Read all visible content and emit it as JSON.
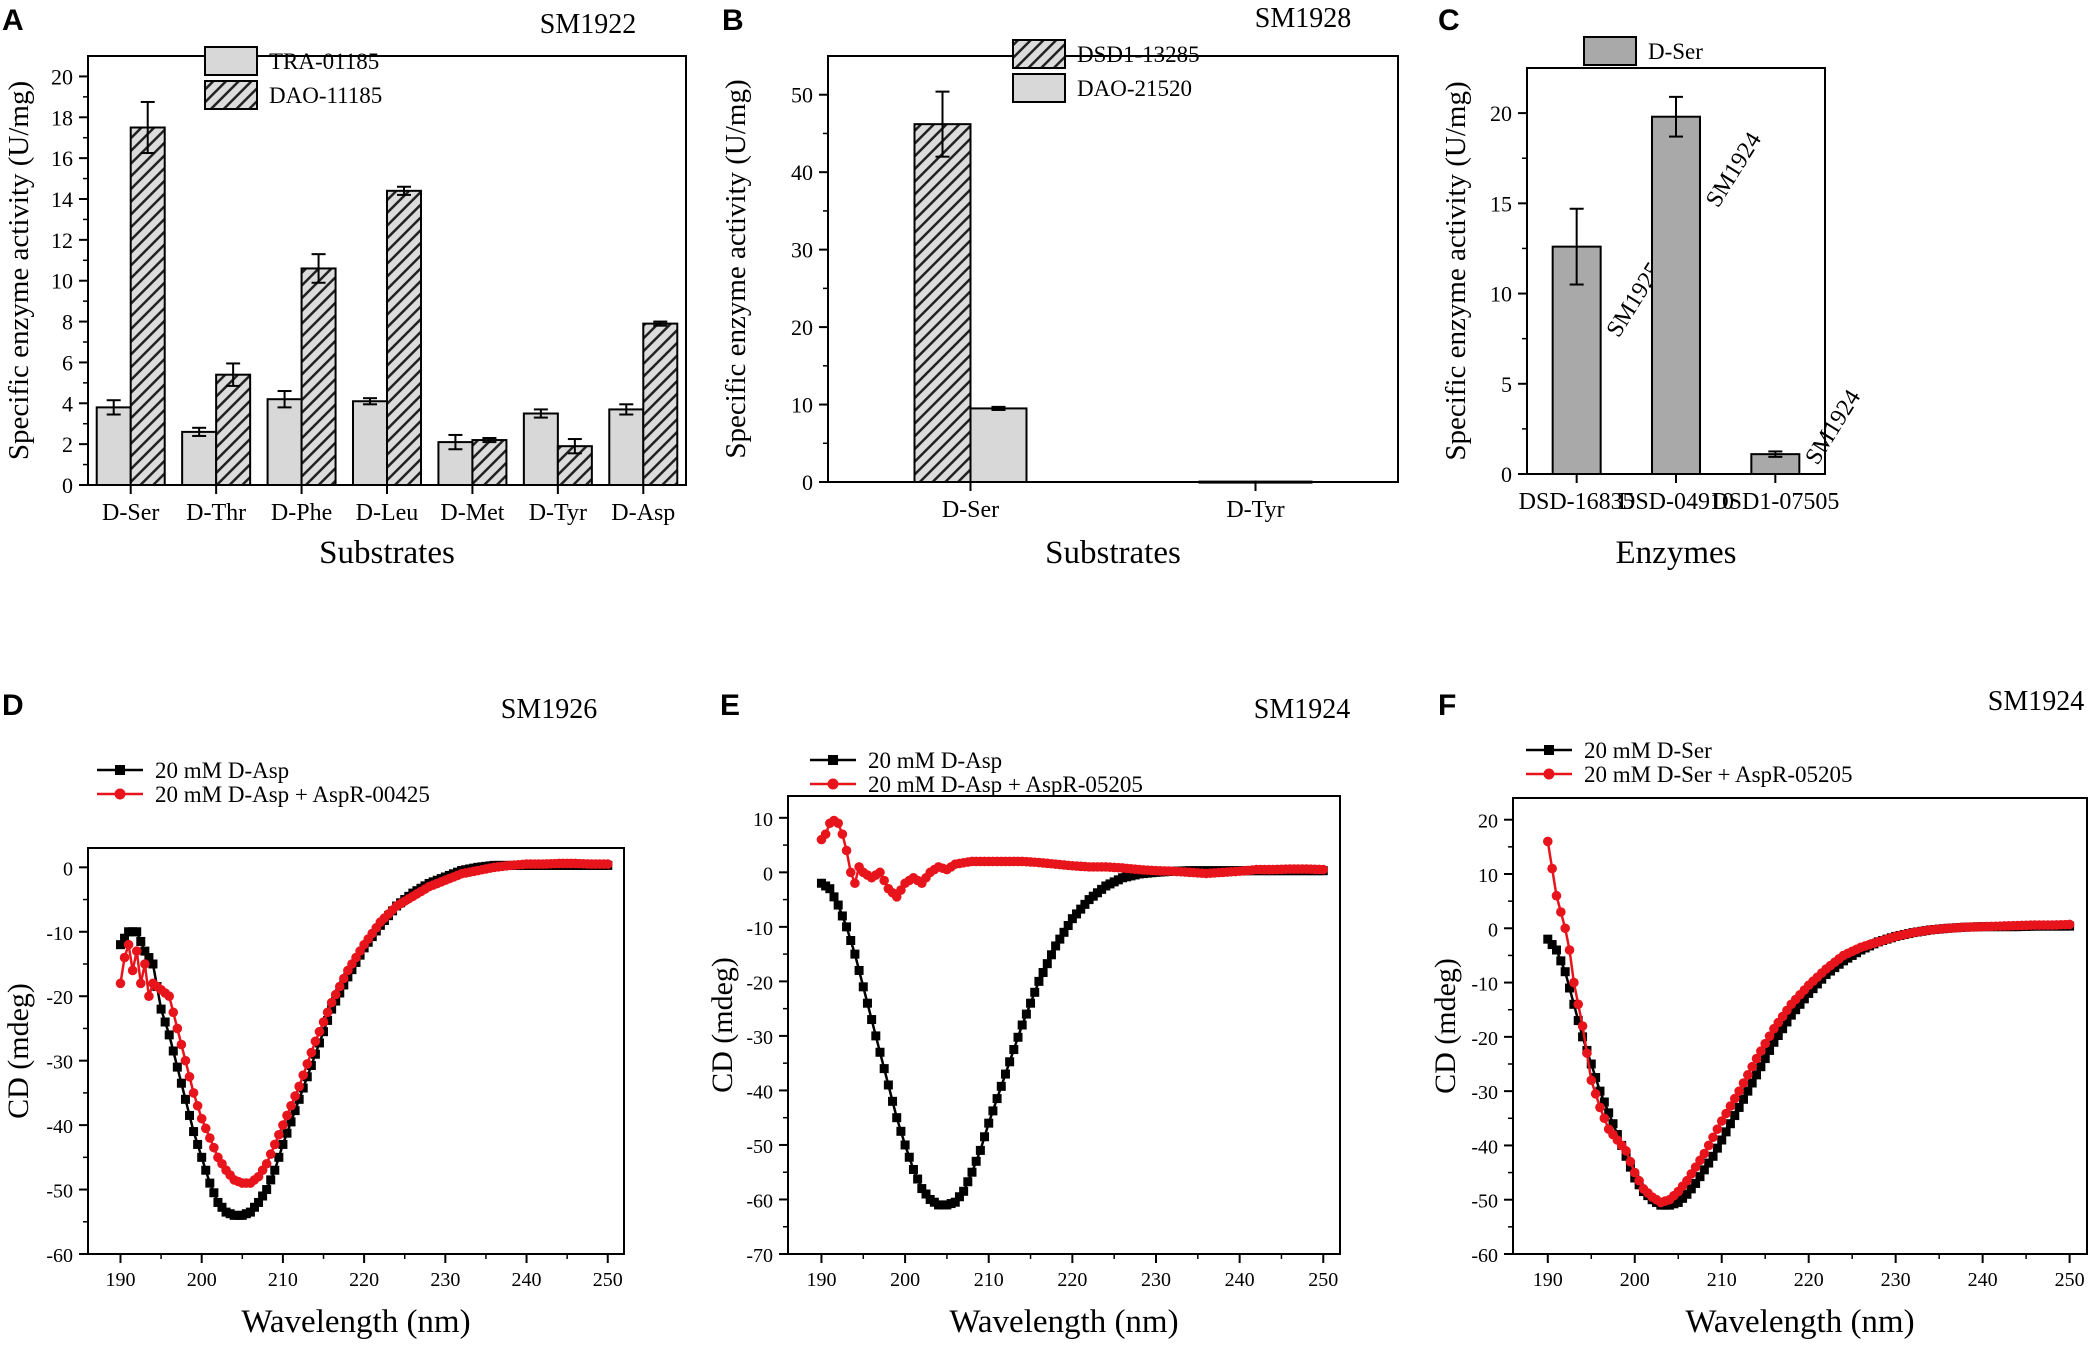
{
  "chart_data": [
    {
      "type": "bar",
      "panel_label": "A",
      "title": "SM1922",
      "xlabel": "Substrates",
      "ylabel": "Specific enzyme activity (U/mg)",
      "ylim": [
        0,
        21
      ],
      "yticks": [
        "0",
        "2",
        "4",
        "6",
        "8",
        "10",
        "12",
        "14",
        "16",
        "18",
        "20"
      ],
      "legend_position": "top-center",
      "categories": [
        "D-Ser",
        "D-Thr",
        "D-Phe",
        "D-Leu",
        "D-Met",
        "D-Tyr",
        "D-Asp"
      ],
      "series": [
        {
          "name": "TRA-01185",
          "pattern": "solid",
          "values": [
            3.8,
            2.6,
            4.2,
            4.1,
            2.1,
            3.5,
            3.7
          ],
          "errors": [
            0.35,
            0.2,
            0.4,
            0.15,
            0.35,
            0.2,
            0.25
          ]
        },
        {
          "name": "DAO-11185",
          "pattern": "hatched",
          "values": [
            17.5,
            5.4,
            10.6,
            14.4,
            2.2,
            1.9,
            7.9
          ],
          "errors": [
            1.25,
            0.55,
            0.7,
            0.2,
            0.1,
            0.35,
            0.1
          ]
        }
      ]
    },
    {
      "type": "bar",
      "panel_label": "B",
      "title": "SM1928",
      "xlabel": "Substrates",
      "ylabel": "Specific enzyme activity (U/mg)",
      "ylim": [
        0,
        55
      ],
      "yticks": [
        "0",
        "10",
        "20",
        "30",
        "40",
        "50"
      ],
      "legend_position": "top-center",
      "categories": [
        "D-Ser",
        "D-Tyr"
      ],
      "series": [
        {
          "name": "DSD1-13285",
          "pattern": "hatched",
          "values": [
            46.2,
            0.05
          ],
          "errors": [
            4.2,
            0
          ]
        },
        {
          "name": "DAO-21520",
          "pattern": "solid",
          "values": [
            9.5,
            0.05
          ],
          "errors": [
            0.2,
            0
          ]
        }
      ]
    },
    {
      "type": "bar",
      "panel_label": "C",
      "title": "",
      "xlabel": "Enzymes",
      "ylabel": "Specific enzyme activity (U/mg)",
      "ylim": [
        0,
        22.5
      ],
      "yticks": [
        "0",
        "5",
        "10",
        "15",
        "20"
      ],
      "legend_position": "top-left",
      "categories": [
        "DSD-16835",
        "DSD-04910",
        "DSD1-07505"
      ],
      "series": [
        {
          "name": "D-Ser",
          "pattern": "solid",
          "values": [
            12.6,
            19.8,
            1.1
          ],
          "errors": [
            2.1,
            1.1,
            0.15
          ]
        }
      ],
      "bar_annotations": [
        "SM1925",
        "SM1924",
        "SM1924"
      ]
    },
    {
      "type": "line",
      "panel_label": "D",
      "title": "SM1926",
      "xlabel": "Wavelength (nm)",
      "ylabel": "CD (mdeg)",
      "xlim": [
        186,
        252
      ],
      "ylim": [
        -60,
        3
      ],
      "xticks": [
        "190",
        "200",
        "210",
        "220",
        "230",
        "240",
        "250"
      ],
      "yticks": [
        "-60",
        "-50",
        "-40",
        "-30",
        "-20",
        "-10",
        "0"
      ],
      "legend_position": "top-left",
      "series": [
        {
          "name": "20 mM D-Asp",
          "color": "#000000",
          "marker": "square",
          "x": [
            190,
            191,
            192,
            193,
            194,
            195,
            196,
            197,
            198,
            199,
            200,
            201,
            202,
            203,
            204,
            205,
            206,
            207,
            208,
            209,
            210,
            212,
            214,
            216,
            218,
            220,
            222,
            224,
            226,
            228,
            230,
            232,
            234,
            236,
            238,
            240,
            242,
            244,
            246,
            248,
            250
          ],
          "y": [
            -12,
            -10,
            -10,
            -13,
            -15,
            -22,
            -26,
            -31,
            -36,
            -41,
            -45,
            -49,
            -52,
            -53.5,
            -54,
            -54,
            -53.5,
            -52,
            -50,
            -47,
            -43,
            -36,
            -29,
            -22,
            -17,
            -12.5,
            -9,
            -6,
            -4,
            -2.5,
            -1.5,
            -0.5,
            0,
            0.3,
            0.3,
            0.3,
            0.3,
            0.3,
            0.3,
            0.3,
            0.3
          ]
        },
        {
          "name": "20 mM D-Asp + AspR-00425",
          "color": "#e8141c",
          "marker": "circle",
          "x": [
            190,
            190.5,
            191,
            191.5,
            192,
            192.5,
            193,
            193.5,
            194,
            195,
            196,
            197,
            198,
            199,
            200,
            201,
            202,
            203,
            204,
            205,
            206,
            207,
            208,
            209,
            210,
            212,
            214,
            216,
            218,
            220,
            222,
            224,
            226,
            228,
            230,
            232,
            234,
            236,
            238,
            240,
            242,
            244,
            246,
            248,
            250
          ],
          "y": [
            -18,
            -14,
            -12,
            -16,
            -13,
            -18,
            -15,
            -20,
            -18,
            -19,
            -20,
            -25,
            -30,
            -35,
            -39,
            -42,
            -45,
            -47,
            -48.5,
            -49,
            -49,
            -48,
            -46,
            -43,
            -40,
            -34,
            -27,
            -21,
            -16,
            -12,
            -8.5,
            -6,
            -4.5,
            -3,
            -2,
            -1,
            -0.5,
            0,
            0.3,
            0.5,
            0.5,
            0.6,
            0.6,
            0.5,
            0.5
          ]
        }
      ]
    },
    {
      "type": "line",
      "panel_label": "E",
      "title": "SM1924",
      "xlabel": "Wavelength (nm)",
      "ylabel": "CD (mdeg)",
      "xlim": [
        186,
        252
      ],
      "ylim": [
        -70,
        14
      ],
      "xticks": [
        "190",
        "200",
        "210",
        "220",
        "230",
        "240",
        "250"
      ],
      "yticks": [
        "-70",
        "-60",
        "-50",
        "-40",
        "-30",
        "-20",
        "-10",
        "0",
        "10"
      ],
      "legend_position": "top-left",
      "series": [
        {
          "name": "20 mM D-Asp",
          "color": "#000000",
          "marker": "square",
          "x": [
            190,
            191,
            192,
            193,
            194,
            195,
            196,
            197,
            198,
            199,
            200,
            201,
            202,
            203,
            204,
            205,
            206,
            207,
            208,
            209,
            210,
            212,
            214,
            216,
            218,
            220,
            222,
            224,
            226,
            228,
            230,
            232,
            234,
            236,
            238,
            240,
            242,
            244,
            246,
            248,
            250
          ],
          "y": [
            -2,
            -3,
            -6,
            -10,
            -15,
            -21,
            -27,
            -33,
            -39,
            -45,
            -50,
            -54.5,
            -58,
            -60,
            -61,
            -61,
            -60.5,
            -58.5,
            -55,
            -51,
            -46,
            -37,
            -28,
            -20,
            -13.5,
            -8.5,
            -5,
            -2.5,
            -1,
            -0.3,
            0,
            0.2,
            0.3,
            0.3,
            0.3,
            0.3,
            0.3,
            0.3,
            0.3,
            0.3,
            0.3
          ]
        },
        {
          "name": "20 mM D-Asp + AspR-05205",
          "color": "#e8141c",
          "marker": "circle",
          "x": [
            190,
            190.5,
            191,
            191.5,
            192,
            192.5,
            193,
            193.5,
            194,
            194.5,
            195,
            196,
            197,
            198,
            199,
            200,
            201,
            202,
            203,
            204,
            205,
            206,
            208,
            210,
            212,
            214,
            216,
            218,
            220,
            222,
            224,
            226,
            228,
            230,
            232,
            234,
            236,
            238,
            240,
            242,
            244,
            246,
            248,
            250
          ],
          "y": [
            6,
            7,
            9,
            9.5,
            9,
            7,
            4,
            0,
            -2,
            1,
            0,
            -1,
            0,
            -3,
            -4.5,
            -2,
            -1,
            -2,
            0,
            1,
            0.5,
            1.5,
            2,
            2,
            2,
            2,
            1.8,
            1.5,
            1.2,
            1,
            1,
            0.8,
            0.5,
            0.3,
            0.2,
            0,
            -0.2,
            0,
            0.2,
            0.5,
            0.5,
            0.6,
            0.6,
            0.5
          ]
        }
      ]
    },
    {
      "type": "line",
      "panel_label": "F",
      "title": "SM1924",
      "xlabel": "Wavelength (nm)",
      "ylabel": "CD (mdeg)",
      "xlim": [
        186,
        252
      ],
      "ylim": [
        -60,
        24
      ],
      "xticks": [
        "190",
        "200",
        "210",
        "220",
        "230",
        "240",
        "250"
      ],
      "yticks": [
        "-60",
        "-50",
        "-40",
        "-30",
        "-20",
        "-10",
        "0",
        "10",
        "20"
      ],
      "legend_position": "top-left",
      "series": [
        {
          "name": "20 mM D-Ser",
          "color": "#000000",
          "marker": "square",
          "x": [
            190,
            191,
            192,
            193,
            194,
            195,
            196,
            197,
            198,
            199,
            200,
            201,
            202,
            203,
            204,
            205,
            206,
            207,
            208,
            209,
            210,
            212,
            214,
            216,
            218,
            220,
            222,
            224,
            226,
            228,
            230,
            232,
            234,
            236,
            238,
            240,
            242,
            244,
            246,
            248,
            250
          ],
          "y": [
            -2,
            -4,
            -8,
            -14,
            -20,
            -25,
            -30,
            -34,
            -38,
            -42,
            -46,
            -48.5,
            -50,
            -51,
            -51,
            -50.5,
            -49,
            -47,
            -44.5,
            -42,
            -39,
            -33,
            -27,
            -21,
            -16,
            -12,
            -8.5,
            -6,
            -4,
            -2.5,
            -1.5,
            -0.8,
            -0.3,
            0,
            0.2,
            0.3,
            0.3,
            0.3,
            0.4,
            0.4,
            0.4
          ]
        },
        {
          "name": "20 mM D-Ser + AspR-05205",
          "color": "#e8141c",
          "marker": "circle",
          "x": [
            190,
            190.5,
            191,
            191.5,
            192,
            192.5,
            193,
            194,
            195,
            196,
            197,
            198,
            199,
            200,
            201,
            202,
            203,
            204,
            205,
            206,
            207,
            208,
            209,
            210,
            212,
            214,
            216,
            218,
            220,
            222,
            224,
            226,
            228,
            230,
            232,
            234,
            236,
            238,
            240,
            242,
            244,
            246,
            248,
            250
          ],
          "y": [
            16,
            11,
            6,
            3,
            0,
            -4,
            -10,
            -18,
            -28,
            -33,
            -37,
            -39,
            -41,
            -45,
            -48,
            -49.5,
            -50.5,
            -50,
            -48.5,
            -46.5,
            -44,
            -41.5,
            -38.5,
            -35.5,
            -30,
            -24,
            -18.5,
            -14,
            -10.5,
            -7.5,
            -5,
            -3.5,
            -2.5,
            -1.5,
            -0.8,
            -0.3,
            0,
            0.2,
            0.3,
            0.4,
            0.5,
            0.6,
            0.6,
            0.7
          ]
        }
      ]
    }
  ]
}
